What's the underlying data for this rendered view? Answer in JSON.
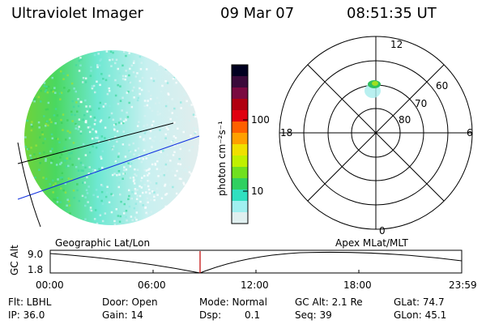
{
  "header": {
    "instrument": "Ultraviolet Imager",
    "date": "09 Mar 07",
    "time": "08:51:35 UT"
  },
  "colorbar": {
    "label": "photon cm⁻²s⁻¹",
    "ticks": [
      "100",
      "10"
    ],
    "colors": [
      "#000020",
      "#3a0a3a",
      "#7a0a40",
      "#b00010",
      "#e00010",
      "#ff6000",
      "#ffa000",
      "#f0e000",
      "#c0f000",
      "#70e020",
      "#30d060",
      "#30e0c0",
      "#a0f0f0",
      "#e0f0f0"
    ]
  },
  "polar": {
    "labels": [
      "12",
      "18",
      "6",
      "0"
    ],
    "rings": [
      "60",
      "70",
      "80"
    ]
  },
  "timeline": {
    "left_label": "Geographic Lat/Lon",
    "right_label": "Apex MLat/MLT",
    "axis_label": "GC Alt",
    "y_top": "9.0",
    "y_bottom": "1.8",
    "x_ticks": [
      "00:00",
      "06:00",
      "12:00",
      "18:00",
      "23:59"
    ]
  },
  "status": {
    "flt": "Flt: LBHL",
    "ip": "IP: 36.0",
    "door": "Door: Open",
    "gain": "Gain: 14",
    "mode": "Mode: Normal",
    "dsp": "Dsp:",
    "dsp_val": "0.1",
    "gc_alt": "GC Alt: 2.1 Re",
    "seq": "Seq: 39",
    "glat": "GLat:  74.7",
    "glon": "GLon:  45.1"
  }
}
